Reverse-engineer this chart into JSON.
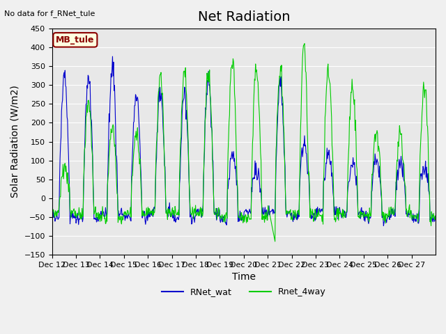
{
  "title": "Net Radiation",
  "ylabel": "Solar Radiation (W/m2)",
  "xlabel": "Time",
  "no_data_text": "No data for f_RNet_tule",
  "site_label": "MB_tule",
  "ylim": [
    -150,
    450
  ],
  "yticks": [
    -150,
    -100,
    -50,
    0,
    50,
    100,
    150,
    200,
    250,
    300,
    350,
    400,
    450
  ],
  "xtick_labels": [
    "Dec 12",
    "Dec 13",
    "Dec 14",
    "Dec 15",
    "Dec 16",
    "Dec 17",
    "Dec 18",
    "Dec 19",
    "Dec 20",
    "Dec 21",
    "Dec 22",
    "Dec 23",
    "Dec 24",
    "Dec 25",
    "Dec 26",
    "Dec 27"
  ],
  "line1_color": "#0000cc",
  "line2_color": "#00cc00",
  "legend_labels": [
    "RNet_wat",
    "Rnet_4way"
  ],
  "background_color": "#e8e8e8",
  "title_fontsize": 14,
  "label_fontsize": 10,
  "tick_fontsize": 8
}
